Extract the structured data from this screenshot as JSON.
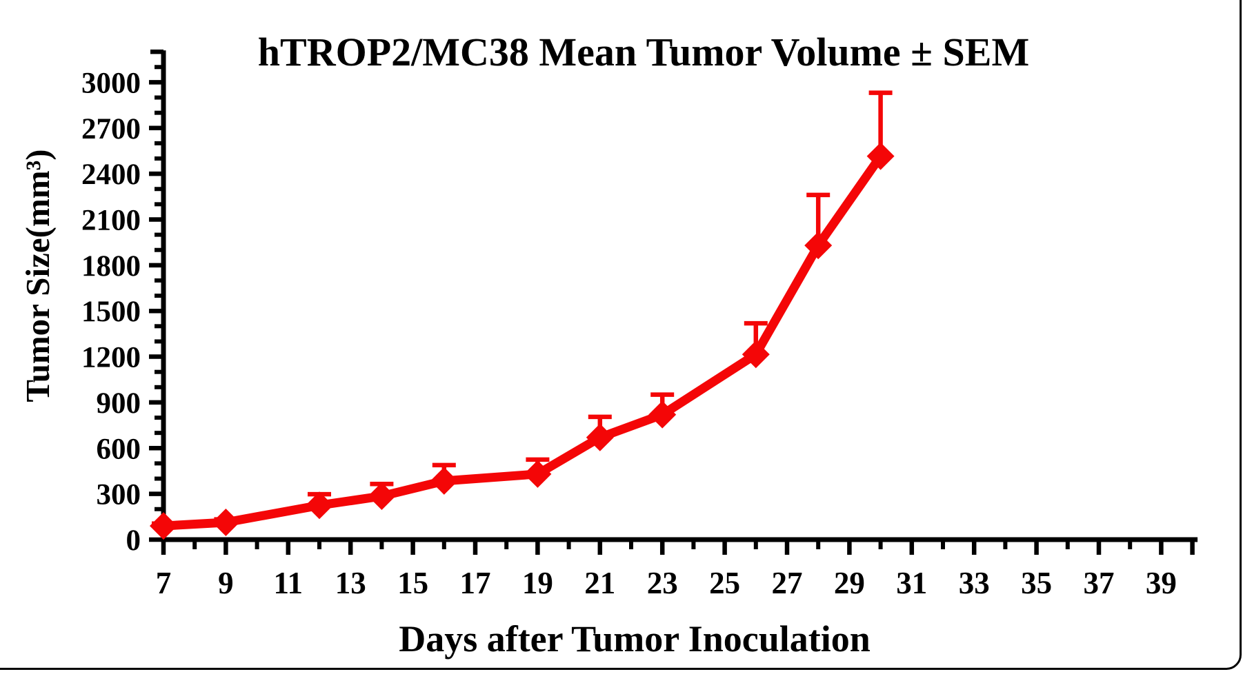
{
  "chart_data": {
    "type": "line",
    "title": "hTROP2/MC38 Mean Tumor Volume ± SEM",
    "xlabel": "Days after Tumor Inoculation",
    "ylabel": "Tumor Size(mm³)",
    "x": [
      7,
      9,
      12,
      14,
      16,
      19,
      21,
      23,
      26,
      28,
      30
    ],
    "series": [
      {
        "name": "hTROP2/MC38",
        "values": [
          90,
          113,
          225,
          285,
          385,
          430,
          670,
          820,
          1215,
          1930,
          2515
        ],
        "sem_upper": [
          15,
          20,
          73,
          80,
          104,
          95,
          135,
          131,
          204,
          331,
          416
        ]
      }
    ],
    "error_bar_style": "upper SEM only, capped",
    "marker": "filled-diamond",
    "line_color": "#F40607",
    "axis_color": "#000000",
    "text_color": "#000000",
    "xlim": [
      6.85,
      40.1
    ],
    "ylim": [
      0,
      3200
    ],
    "x_major_ticks": [
      7,
      9,
      11,
      13,
      15,
      17,
      19,
      21,
      23,
      25,
      27,
      29,
      31,
      33,
      35,
      37,
      39
    ],
    "x_minor_step": 1,
    "x_minor_max": 40,
    "y_major_ticks": [
      0,
      300,
      600,
      900,
      1200,
      1500,
      1800,
      2100,
      2400,
      2700,
      3000
    ],
    "y_major_step": 300,
    "y_minor_step": 100,
    "y_minor_max": 3100,
    "grid": false,
    "legend": "none"
  }
}
